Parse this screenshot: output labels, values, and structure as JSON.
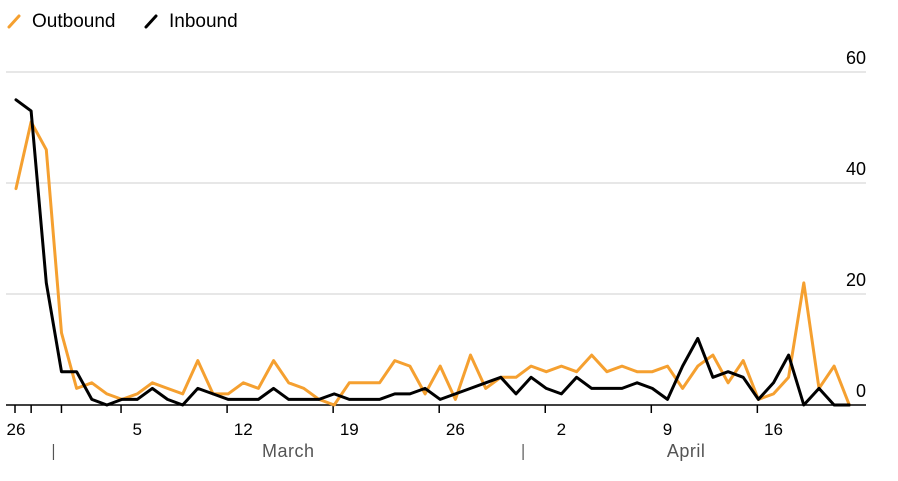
{
  "chart_data": {
    "type": "line",
    "x": [
      "Feb 26",
      "Feb 27",
      "Feb 28",
      "Feb 29",
      "Mar 1",
      "Mar 2",
      "Mar 3",
      "Mar 4",
      "Mar 5",
      "Mar 6",
      "Mar 7",
      "Mar 8",
      "Mar 9",
      "Mar 10",
      "Mar 11",
      "Mar 12",
      "Mar 13",
      "Mar 14",
      "Mar 15",
      "Mar 16",
      "Mar 17",
      "Mar 18",
      "Mar 19",
      "Mar 20",
      "Mar 21",
      "Mar 22",
      "Mar 23",
      "Mar 24",
      "Mar 25",
      "Mar 26",
      "Mar 27",
      "Mar 28",
      "Mar 29",
      "Mar 30",
      "Mar 31",
      "Apr 1",
      "Apr 2",
      "Apr 3",
      "Apr 4",
      "Apr 5",
      "Apr 6",
      "Apr 7",
      "Apr 8",
      "Apr 9",
      "Apr 10",
      "Apr 11",
      "Apr 12",
      "Apr 13",
      "Apr 14",
      "Apr 15",
      "Apr 16",
      "Apr 17",
      "Apr 18",
      "Apr 19",
      "Apr 20",
      "Apr 21"
    ],
    "series": [
      {
        "name": "Outbound",
        "color": "#f5a030",
        "values": [
          39,
          51,
          46,
          13,
          3,
          4,
          2,
          1,
          2,
          4,
          3,
          2,
          8,
          2,
          2,
          4,
          3,
          8,
          4,
          3,
          1,
          0,
          4,
          4,
          4,
          8,
          7,
          2,
          7,
          1,
          9,
          3,
          5,
          5,
          7,
          6,
          7,
          6,
          9,
          6,
          7,
          6,
          6,
          7,
          3,
          7,
          9,
          4,
          8,
          1,
          2,
          5,
          22,
          3,
          7,
          0
        ]
      },
      {
        "name": "Inbound",
        "color": "#000000",
        "values": [
          55,
          53,
          22,
          6,
          6,
          1,
          0,
          1,
          1,
          3,
          1,
          0,
          3,
          2,
          1,
          1,
          1,
          3,
          1,
          1,
          1,
          2,
          1,
          1,
          1,
          2,
          2,
          3,
          1,
          2,
          3,
          4,
          5,
          2,
          5,
          3,
          2,
          5,
          3,
          3,
          3,
          4,
          3,
          1,
          7,
          12,
          5,
          6,
          5,
          1,
          4,
          9,
          0,
          3,
          0,
          0
        ]
      }
    ],
    "ylim": [
      0,
      60
    ],
    "yticks": [
      "0",
      "20",
      "40",
      "60"
    ],
    "xtick_labels": [
      {
        "index": 0,
        "label": "26"
      },
      {
        "index": 8,
        "label": "5"
      },
      {
        "index": 15,
        "label": "12"
      },
      {
        "index": 22,
        "label": "19"
      },
      {
        "index": 29,
        "label": "26"
      },
      {
        "index": 36,
        "label": "2"
      },
      {
        "index": 43,
        "label": "9"
      },
      {
        "index": 50,
        "label": "16"
      }
    ],
    "month_labels": [
      {
        "label": "March",
        "from_index": 3,
        "to_index": 34
      },
      {
        "label": "April",
        "from_index": 34,
        "to_index": 55
      }
    ],
    "grid": true,
    "legend_position": "top-left"
  }
}
